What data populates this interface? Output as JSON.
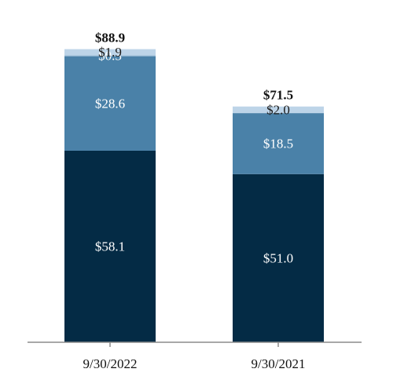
{
  "chart_data": {
    "type": "bar",
    "stacked": true,
    "categories": [
      "9/30/2022",
      "9/30/2021"
    ],
    "series": [
      {
        "values": [
          58.1,
          51.0
        ],
        "labels": [
          "$58.1",
          "$51.0"
        ],
        "color": "#042b45",
        "label_color": "#ffffff"
      },
      {
        "values": [
          28.6,
          18.5
        ],
        "labels": [
          "$28.6",
          "$18.5"
        ],
        "color": "#4a81a8",
        "label_color": "#ffffff"
      },
      {
        "values": [
          0.3,
          0.0
        ],
        "labels": [
          "$0.3",
          ""
        ],
        "color": "#7fa8c9",
        "label_color": "#ffffff"
      },
      {
        "values": [
          1.9,
          2.0
        ],
        "labels": [
          "$1.9",
          "$2.0"
        ],
        "color": "#bdd4e8",
        "label_color": "#1a1a1a"
      }
    ],
    "totals": [
      "$88.9",
      "$71.5"
    ],
    "ylim": [
      0,
      100
    ],
    "grid": false,
    "legend": "none"
  }
}
